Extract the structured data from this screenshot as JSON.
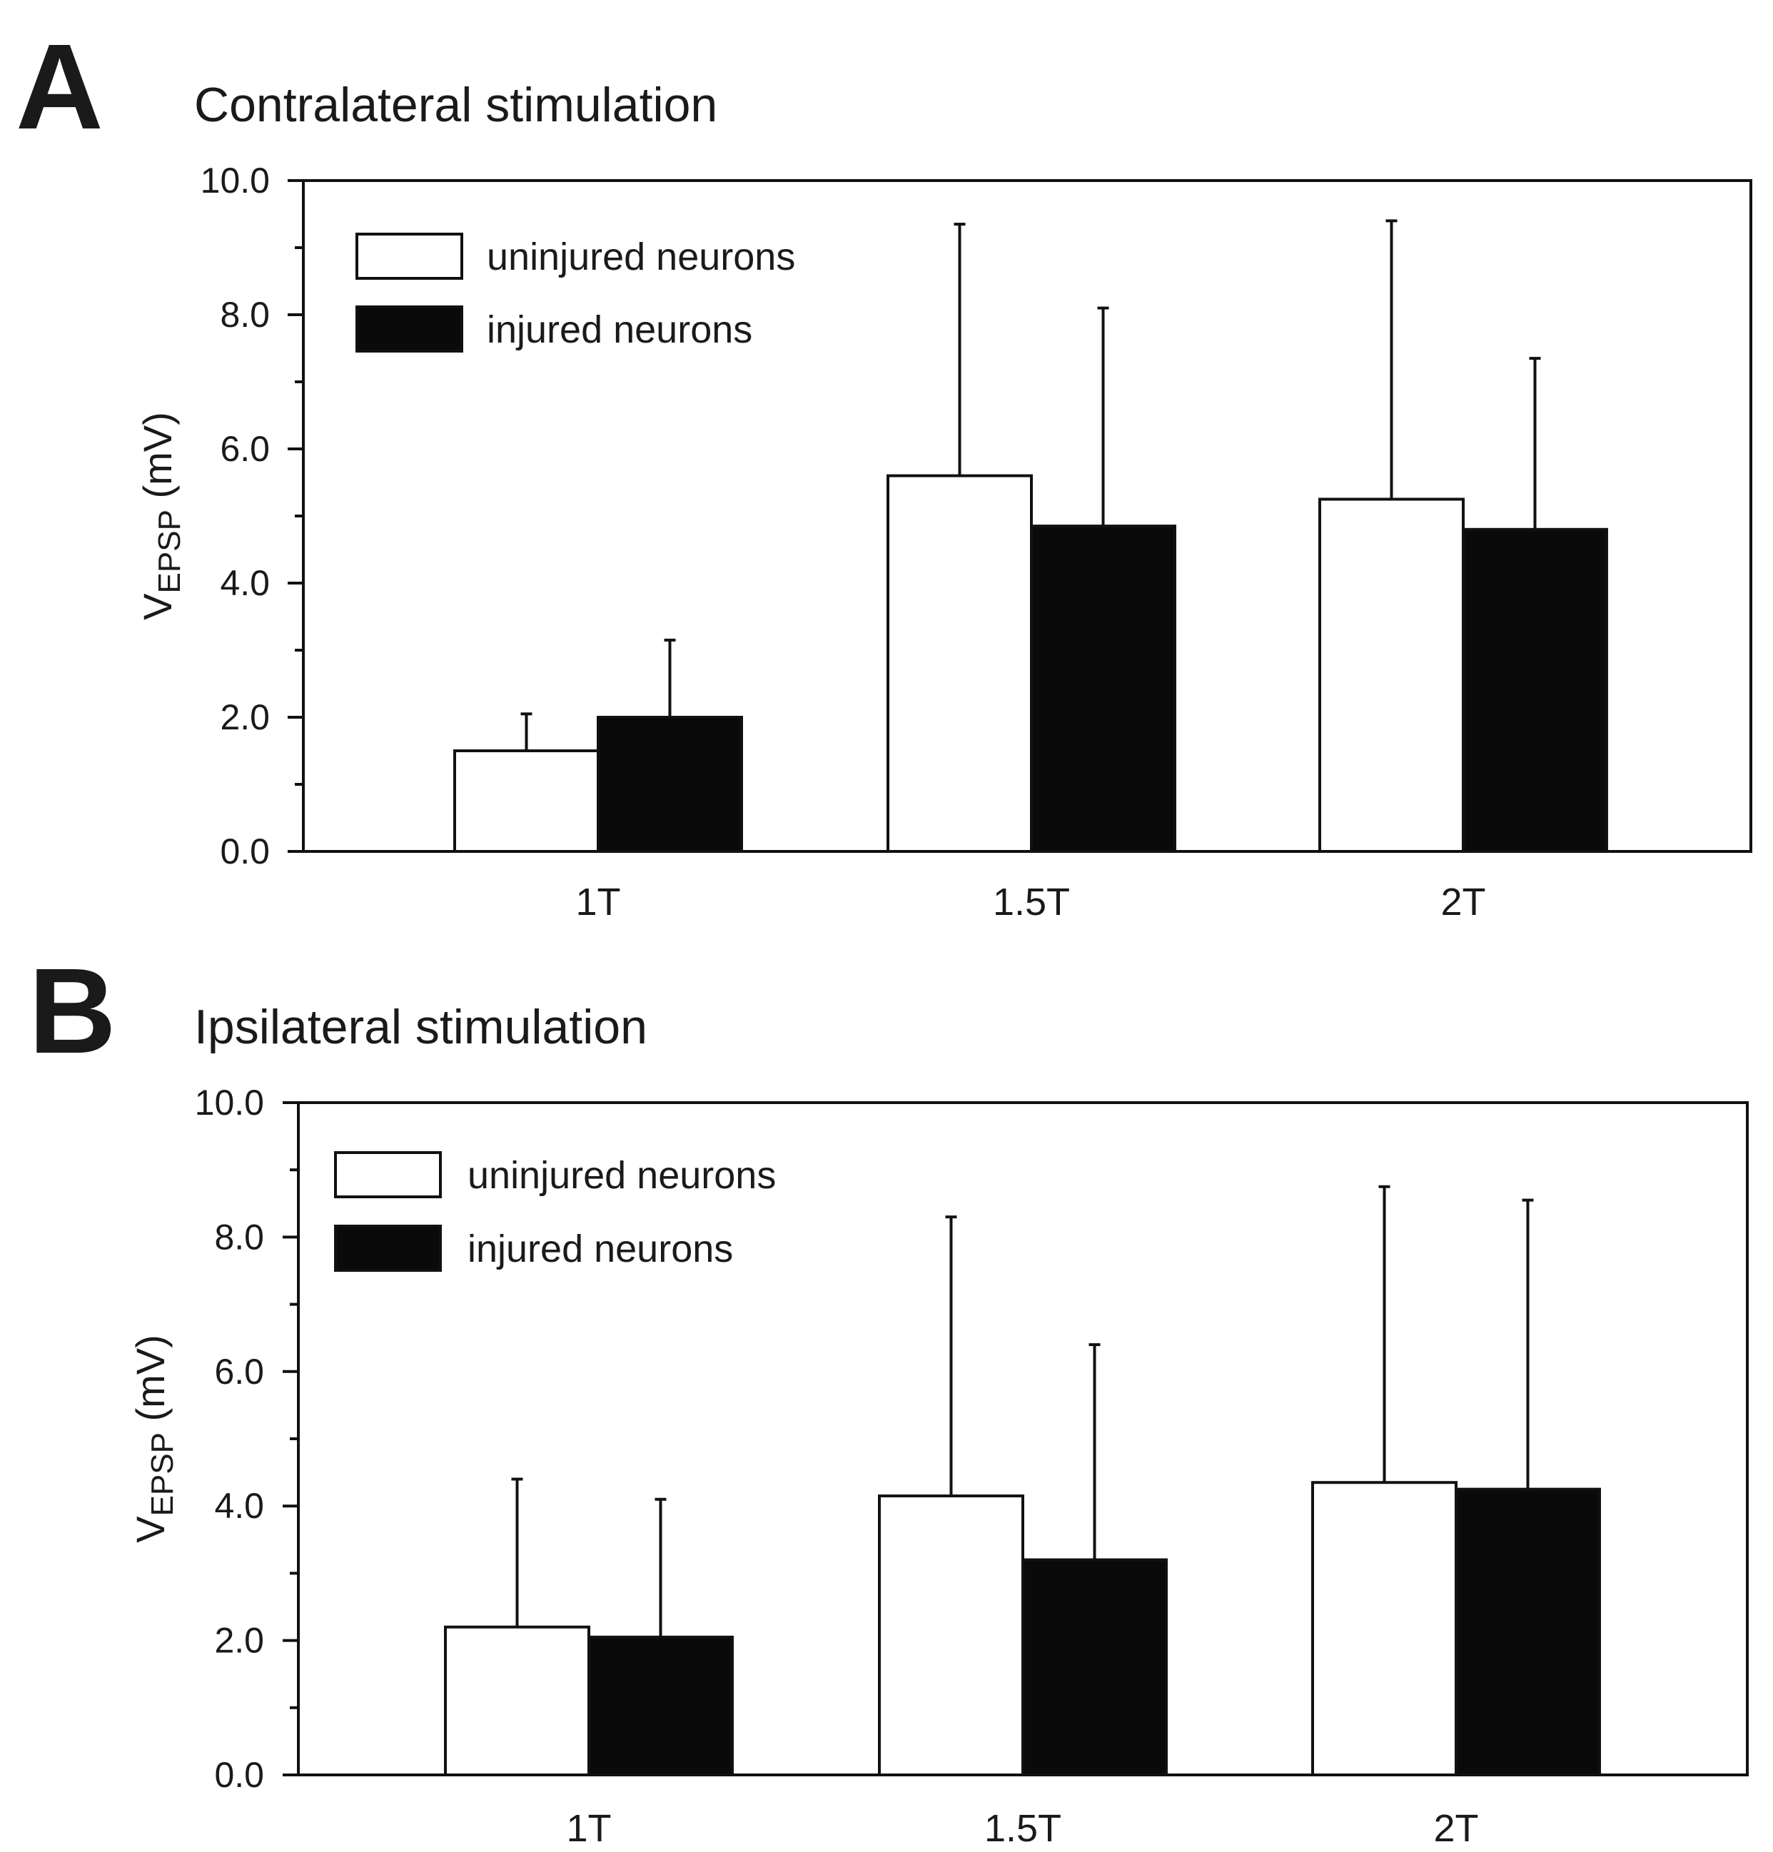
{
  "chart_data": [
    {
      "type": "bar",
      "panel_label": "A",
      "title": "Contralateral stimulation",
      "xlabel": "",
      "ylabel": {
        "main": "V",
        "subscript": "EPSP",
        "suffix": " (mV)"
      },
      "ylim": [
        0,
        10
      ],
      "yticks": [
        "0.0",
        "2.0",
        "4.0",
        "6.0",
        "8.0",
        "10.0"
      ],
      "categories": [
        "1T",
        "1.5T",
        "2T"
      ],
      "grid": false,
      "legend_position": "top-left",
      "series": [
        {
          "name": "uninjured neurons",
          "color": "#ffffff",
          "values": [
            1.5,
            5.6,
            5.25
          ],
          "error_upper": [
            2.05,
            9.35,
            9.4
          ]
        },
        {
          "name": "injured neurons",
          "color": "#0a0a0a",
          "values": [
            2.0,
            4.85,
            4.8
          ],
          "error_upper": [
            3.15,
            8.1,
            7.35
          ]
        }
      ]
    },
    {
      "type": "bar",
      "panel_label": "B",
      "title": "Ipsilateral stimulation",
      "xlabel": "",
      "ylabel": {
        "main": "V",
        "subscript": "EPSP",
        "suffix": " (mV)"
      },
      "ylim": [
        0,
        10
      ],
      "yticks": [
        "0.0",
        "2.0",
        "4.0",
        "6.0",
        "8.0",
        "10.0"
      ],
      "categories": [
        "1T",
        "1.5T",
        "2T"
      ],
      "grid": false,
      "legend_position": "top-left",
      "series": [
        {
          "name": "uninjured neurons",
          "color": "#ffffff",
          "values": [
            2.2,
            4.15,
            4.35
          ],
          "error_upper": [
            4.4,
            8.3,
            8.75
          ]
        },
        {
          "name": "injured neurons",
          "color": "#0a0a0a",
          "values": [
            2.05,
            3.2,
            4.25
          ],
          "error_upper": [
            4.1,
            6.4,
            8.55
          ]
        }
      ]
    }
  ]
}
